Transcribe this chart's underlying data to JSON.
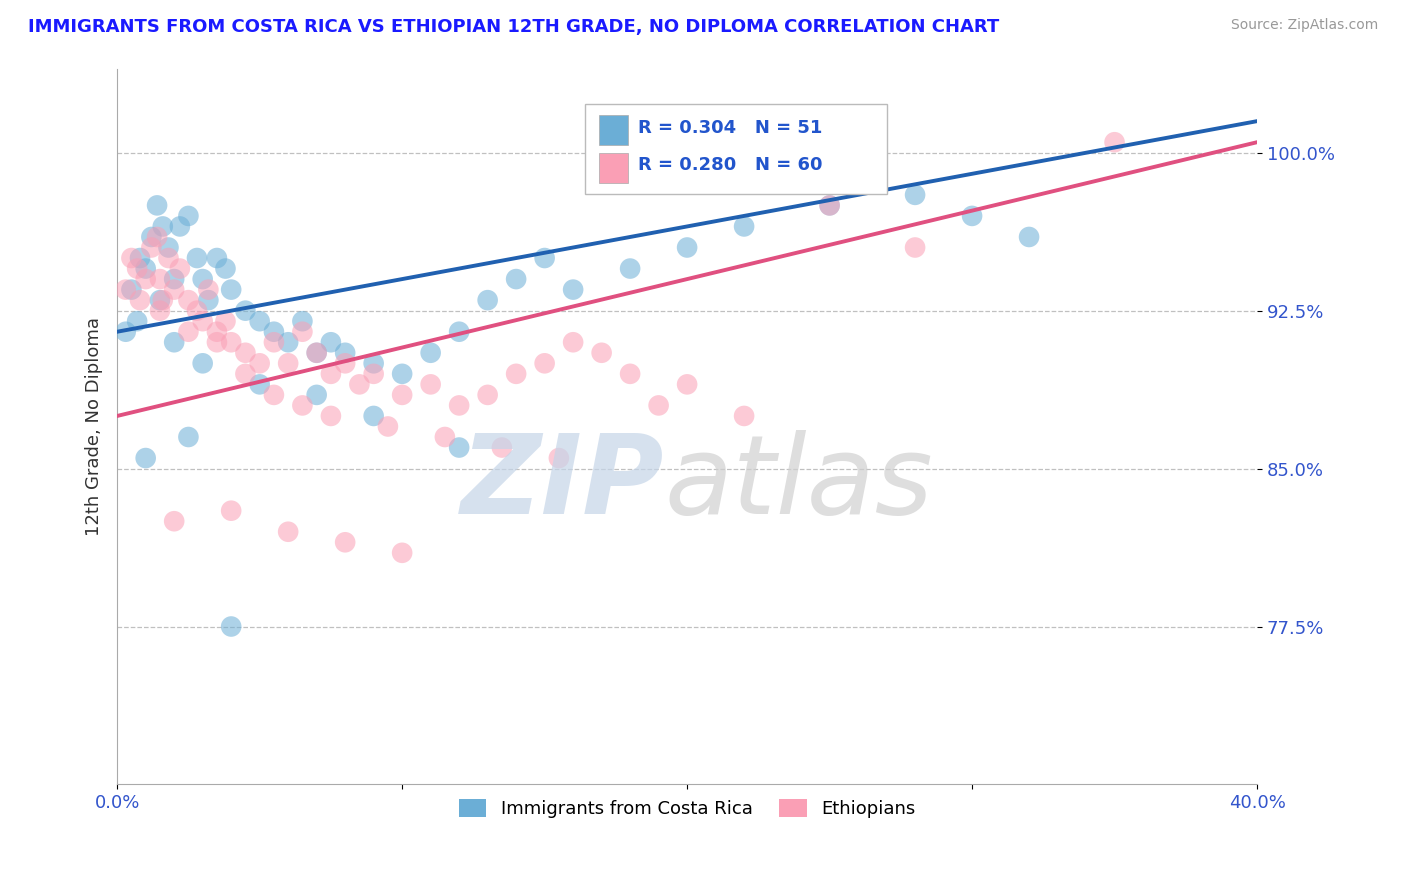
{
  "title": "IMMIGRANTS FROM COSTA RICA VS ETHIOPIAN 12TH GRADE, NO DIPLOMA CORRELATION CHART",
  "source": "Source: ZipAtlas.com",
  "ylabel": "12th Grade, No Diploma",
  "y_ticks": [
    77.5,
    85.0,
    92.5,
    100.0
  ],
  "y_tick_labels": [
    "77.5%",
    "85.0%",
    "92.5%",
    "100.0%"
  ],
  "xlim": [
    0.0,
    40.0
  ],
  "ylim": [
    70.0,
    104.0
  ],
  "blue_R": 0.304,
  "blue_N": 51,
  "pink_R": 0.28,
  "pink_N": 60,
  "legend1_label": "Immigrants from Costa Rica",
  "legend2_label": "Ethiopians",
  "blue_color": "#6baed6",
  "pink_color": "#fa9fb5",
  "blue_line_color": "#2060b0",
  "pink_line_color": "#e05080",
  "title_color": "#1a1aff",
  "blue_line_x0": 0.0,
  "blue_line_y0": 91.5,
  "blue_line_x1": 40.0,
  "blue_line_y1": 101.5,
  "pink_line_x0": 0.0,
  "pink_line_y0": 87.5,
  "pink_line_x1": 40.0,
  "pink_line_y1": 100.5,
  "blue_scatter_x": [
    0.3,
    0.5,
    0.7,
    0.8,
    1.0,
    1.2,
    1.4,
    1.5,
    1.6,
    1.8,
    2.0,
    2.2,
    2.5,
    2.8,
    3.0,
    3.2,
    3.5,
    3.8,
    4.0,
    4.5,
    5.0,
    5.5,
    6.0,
    6.5,
    7.0,
    7.5,
    8.0,
    9.0,
    10.0,
    11.0,
    12.0,
    13.0,
    14.0,
    15.0,
    16.0,
    18.0,
    20.0,
    22.0,
    25.0,
    28.0,
    30.0,
    32.0,
    2.0,
    3.0,
    5.0,
    7.0,
    9.0,
    12.0,
    1.0,
    2.5,
    4.0
  ],
  "blue_scatter_y": [
    91.5,
    93.5,
    92.0,
    95.0,
    94.5,
    96.0,
    97.5,
    93.0,
    96.5,
    95.5,
    94.0,
    96.5,
    97.0,
    95.0,
    94.0,
    93.0,
    95.0,
    94.5,
    93.5,
    92.5,
    92.0,
    91.5,
    91.0,
    92.0,
    90.5,
    91.0,
    90.5,
    90.0,
    89.5,
    90.5,
    91.5,
    93.0,
    94.0,
    95.0,
    93.5,
    94.5,
    95.5,
    96.5,
    97.5,
    98.0,
    97.0,
    96.0,
    91.0,
    90.0,
    89.0,
    88.5,
    87.5,
    86.0,
    85.5,
    86.5,
    77.5
  ],
  "pink_scatter_x": [
    0.3,
    0.5,
    0.7,
    0.8,
    1.0,
    1.2,
    1.4,
    1.5,
    1.6,
    1.8,
    2.0,
    2.2,
    2.5,
    2.8,
    3.0,
    3.2,
    3.5,
    3.8,
    4.0,
    4.5,
    5.0,
    5.5,
    6.0,
    6.5,
    7.0,
    7.5,
    8.0,
    8.5,
    9.0,
    10.0,
    11.0,
    12.0,
    13.0,
    14.0,
    15.0,
    16.0,
    17.0,
    18.0,
    19.0,
    20.0,
    22.0,
    1.5,
    2.5,
    3.5,
    4.5,
    5.5,
    6.5,
    7.5,
    9.5,
    11.5,
    13.5,
    15.5,
    2.0,
    4.0,
    6.0,
    8.0,
    10.0,
    25.0,
    28.0,
    35.0
  ],
  "pink_scatter_y": [
    93.5,
    95.0,
    94.5,
    93.0,
    94.0,
    95.5,
    96.0,
    94.0,
    93.0,
    95.0,
    93.5,
    94.5,
    93.0,
    92.5,
    92.0,
    93.5,
    91.5,
    92.0,
    91.0,
    90.5,
    90.0,
    91.0,
    90.0,
    91.5,
    90.5,
    89.5,
    90.0,
    89.0,
    89.5,
    88.5,
    89.0,
    88.0,
    88.5,
    89.5,
    90.0,
    91.0,
    90.5,
    89.5,
    88.0,
    89.0,
    87.5,
    92.5,
    91.5,
    91.0,
    89.5,
    88.5,
    88.0,
    87.5,
    87.0,
    86.5,
    86.0,
    85.5,
    82.5,
    83.0,
    82.0,
    81.5,
    81.0,
    97.5,
    95.5,
    100.5
  ]
}
